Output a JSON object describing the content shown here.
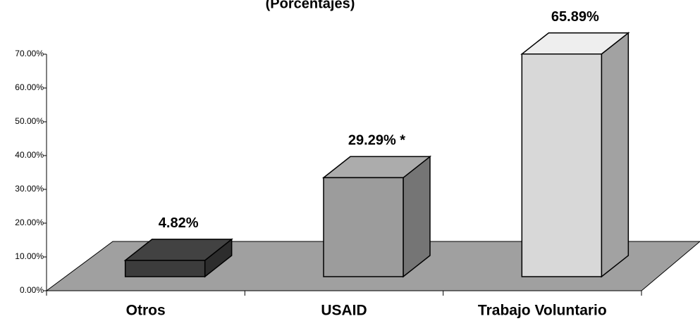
{
  "chart_data": {
    "type": "bar3d",
    "title": "(Porcentajes)",
    "categories": [
      "Otros",
      "USAID",
      "Trabajo Voluntario"
    ],
    "values": [
      4.82,
      29.29,
      65.89
    ],
    "value_labels": [
      "4.82%",
      "29.29% *",
      "65.89%"
    ],
    "colors": [
      "#3c3c3c",
      "#9c9c9c",
      "#d8d8d8"
    ],
    "ylim": [
      0,
      70
    ],
    "yticks": [
      {
        "value": 0,
        "label": "0.00%"
      },
      {
        "value": 10,
        "label": "10.00%"
      },
      {
        "value": 20,
        "label": "20.00%"
      },
      {
        "value": 30,
        "label": "30.00%"
      },
      {
        "value": 40,
        "label": "40.00%"
      },
      {
        "value": 50,
        "label": "50.00%"
      },
      {
        "value": 60,
        "label": "60.00%"
      },
      {
        "value": 70,
        "label": "70.00%"
      }
    ]
  }
}
